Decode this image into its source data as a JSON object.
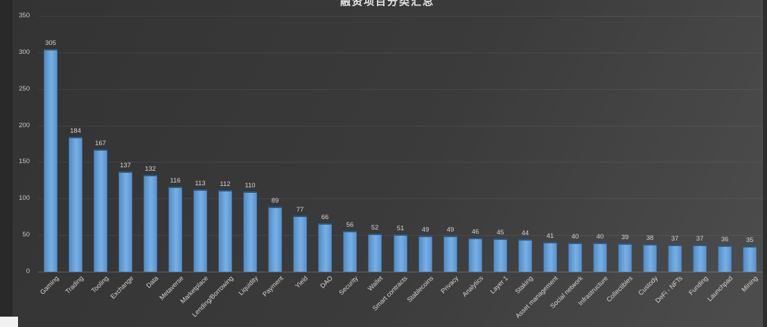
{
  "window": {
    "outer_background": "#2e2e2e",
    "chart_background": "#3b3b3b",
    "corner_color": "#f1f1f1"
  },
  "chart_data": {
    "type": "bar",
    "title": "融资项目分类汇总",
    "categories": [
      "Gaming",
      "Trading",
      "Tooling",
      "Exchange",
      "Data",
      "Metaverse",
      "Marketplace",
      "Lending/Borrowing",
      "Liquidity",
      "Payment",
      "Yield",
      "DAO",
      "Security",
      "Wallet",
      "Smart contracts",
      "Stablecoins",
      "Privacy",
      "Analytics",
      "Layer 1",
      "Staking",
      "Asset management",
      "Social network",
      "Infrastructure",
      "Collectibles",
      "Custody",
      "DeFi - NFTs",
      "Funding",
      "Launchpad",
      "Mining"
    ],
    "values": [
      305,
      184,
      167,
      137,
      132,
      116,
      113,
      112,
      110,
      89,
      77,
      66,
      56,
      52,
      51,
      49,
      49,
      46,
      45,
      44,
      41,
      40,
      40,
      39,
      38,
      37,
      37,
      36,
      35
    ],
    "xlabel": "",
    "ylabel": "",
    "ylim": [
      0,
      350
    ],
    "y_ticks": [
      0,
      50,
      100,
      150,
      200,
      250,
      300,
      350
    ],
    "grid": "horizontal",
    "legend": "none",
    "bar_color": "#5B9BD5",
    "bar_cap_color": "#30597f",
    "text_color": "#d6d6d6",
    "data_labels": "above-bars",
    "x_label_rotation_deg": 45
  }
}
